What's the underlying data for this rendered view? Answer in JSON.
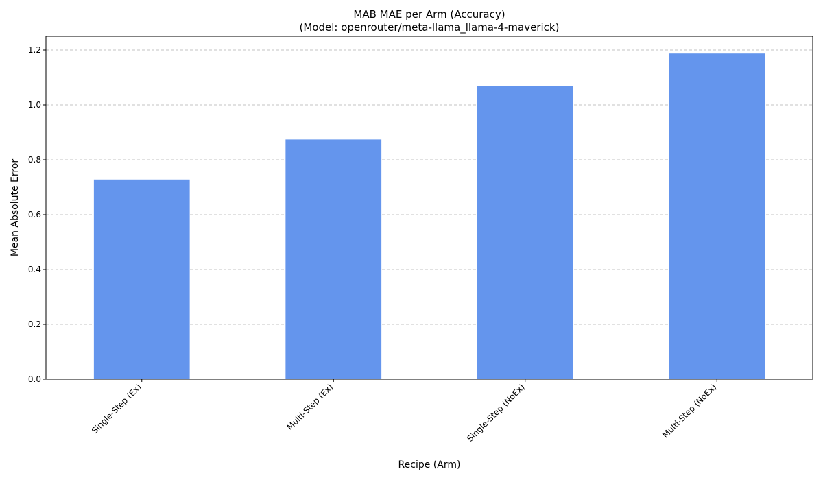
{
  "chart_data": {
    "type": "bar",
    "title": "MAB MAE per Arm (Accuracy)",
    "subtitle": "(Model: openrouter/meta-llama_llama-4-maverick)",
    "xlabel": "Recipe (Arm)",
    "ylabel": "Mean Absolute Error",
    "categories": [
      "Single-Step (Ex)",
      "Multi-Step (Ex)",
      "Single-Step (NoEx)",
      "Multi-Step (NoEx)"
    ],
    "values": [
      0.728,
      0.874,
      1.069,
      1.187
    ],
    "ylim": [
      0,
      1.25
    ],
    "yticks": [
      "0.0",
      "0.2",
      "0.4",
      "0.6",
      "0.8",
      "1.0",
      "1.2"
    ],
    "grid": "y-dashed",
    "legend": "none",
    "bar_color": "#6495ED"
  }
}
